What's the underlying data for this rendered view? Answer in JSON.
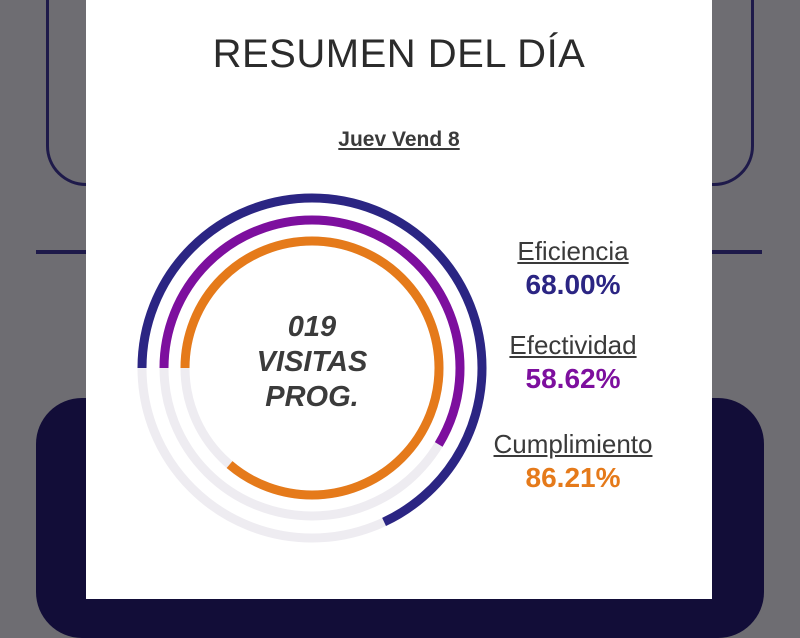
{
  "modal": {
    "title": "RESUMEN DEL DÍA",
    "subtitle": "Juev Vend 8"
  },
  "center": {
    "count": "019",
    "line2": "VISITAS",
    "line3": "PROG."
  },
  "stats": [
    {
      "label": "Eficiencia",
      "value": "68.00%",
      "fraction": 0.68,
      "color": "#2b2583"
    },
    {
      "label": "Efectividad",
      "value": "58.62%",
      "fraction": 0.5862,
      "color": "#7d0f9e"
    },
    {
      "label": "Cumplimiento",
      "value": "86.21%",
      "fraction": 0.8621,
      "color": "#e57a1a"
    }
  ],
  "colors": {
    "track": "#eeecf1",
    "background_dark": "#120d38",
    "overlay": "#6e6d72"
  }
}
